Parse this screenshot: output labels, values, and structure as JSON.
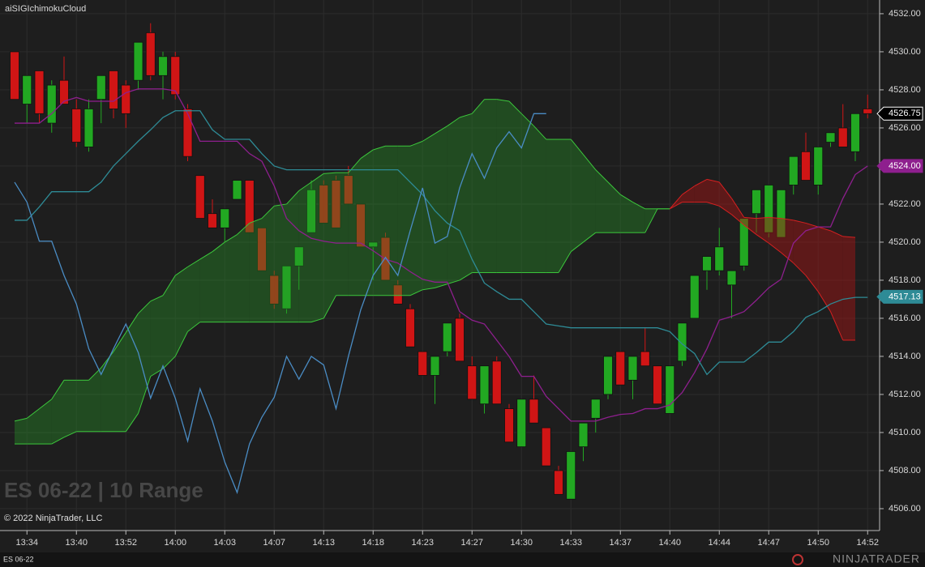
{
  "indicator_label": "aiSIGIchimokuCloud",
  "watermark": "ES 06-22 | 10 Range",
  "copyright": "© 2022 NinjaTrader, LLC",
  "instrument_tab": "ES 06-22",
  "logo": "NINJATRADER",
  "chart_data": {
    "type": "candlestick",
    "x": [
      null,
      "13:34",
      null,
      null,
      null,
      "13:40",
      null,
      null,
      null,
      "13:52",
      null,
      null,
      null,
      "14:00",
      null,
      null,
      null,
      "14:03",
      null,
      null,
      null,
      "14:07",
      null,
      null,
      null,
      "14:13",
      null,
      null,
      null,
      "14:18",
      null,
      null,
      null,
      "14:23",
      null,
      null,
      null,
      "14:27",
      null,
      null,
      null,
      "14:30",
      null,
      null,
      null,
      "14:33",
      null,
      null,
      null,
      "14:37",
      null,
      null,
      null,
      "14:40",
      null,
      null,
      null,
      "14:44",
      null,
      null,
      null,
      "14:47",
      null,
      null,
      null,
      "14:50",
      null,
      null,
      null,
      "14:52"
    ],
    "open": [
      4530,
      4527.25,
      4529,
      4526.25,
      4528.5,
      4527,
      4525,
      4527.5,
      4529,
      4528.25,
      4528.5,
      4531,
      4528.75,
      4529.75,
      4527,
      4523.5,
      4521.5,
      4520.75,
      4522.25,
      4523.25,
      4520.75,
      4518.25,
      4516.5,
      4518.75,
      4520.5,
      4523,
      4523.25,
      4523.5,
      4522,
      4519.75,
      4520.25,
      4517.75,
      4516.5,
      4514.25,
      4513,
      4514.25,
      4516,
      4513.5,
      4511.5,
      4513.75,
      4511.25,
      4509.25,
      4511.75,
      4510.25,
      4508,
      4506.5,
      4509.25,
      4510.75,
      4512,
      4514.25,
      4512.75,
      4514.25,
      4513.5,
      4511,
      4513.75,
      4516,
      4518.5,
      4518.5,
      4517.75,
      4518.75,
      4521.5,
      4520.5,
      4520.25,
      4523,
      4524.75,
      4523,
      4525.25,
      4526,
      4524.75,
      4527
    ],
    "high": [
      4530,
      4528.75,
      4529,
      4528.5,
      4529.75,
      4527.5,
      4527.5,
      4528.75,
      4529,
      4528.5,
      4530.5,
      4531.5,
      4530,
      4530,
      4527.25,
      4523.5,
      4522.25,
      4521.75,
      4523.25,
      4523.25,
      4520.75,
      4518.5,
      4518.75,
      4519.75,
      4523.25,
      4523.25,
      4523.5,
      4524,
      4522,
      4520,
      4520.5,
      4518,
      4516.75,
      4514.25,
      4514,
      4515.75,
      4516.25,
      4514,
      4513.5,
      4514,
      4511.5,
      4511.75,
      4513,
      4510.25,
      4508.25,
      4509,
      4510.5,
      4511.75,
      4514,
      4514.25,
      4514,
      4515.5,
      4513.5,
      4513.5,
      4515.75,
      4518.25,
      4519.25,
      4520.75,
      4518.5,
      4521.25,
      4522.75,
      4523,
      4522.75,
      4524.5,
      4525.75,
      4525,
      4525.75,
      4527.25,
      4526.75,
      4527.75
    ],
    "low": [
      4527.5,
      4526.25,
      4526.25,
      4525.75,
      4527.25,
      4525,
      4524.75,
      4526.25,
      4526.5,
      4526,
      4528,
      4528.5,
      4527.5,
      4527.5,
      4524.25,
      4521.25,
      4520.75,
      4520,
      4522.25,
      4520.5,
      4518.5,
      4516.5,
      4516.25,
      4517.5,
      4520.5,
      4521,
      4520.75,
      4522,
      4519.75,
      4518,
      4518,
      4516.75,
      4514.5,
      4513,
      4511.5,
      4514,
      4513.75,
      4511.75,
      4511,
      4511.5,
      4509.5,
      4509.25,
      4510.5,
      4508.25,
      4506.75,
      4506.5,
      4508.5,
      4510,
      4511.75,
      4512.5,
      4511.75,
      4513.5,
      4511.5,
      4511,
      4513.5,
      4516,
      4517.5,
      4518.25,
      4516,
      4518.5,
      4520.5,
      4520.25,
      4520.25,
      4522.5,
      4523.25,
      4522.5,
      4525,
      4525,
      4524.25,
      4526.5
    ],
    "close": [
      4527.5,
      4528.75,
      4526.75,
      4528.25,
      4527.25,
      4525.25,
      4527,
      4528.75,
      4527,
      4526.75,
      4530.5,
      4528.75,
      4529.75,
      4527.75,
      4524.5,
      4521.25,
      4520.75,
      4521.75,
      4523.25,
      4520.5,
      4518.5,
      4516.75,
      4518.75,
      4519.75,
      4522.75,
      4521,
      4520.75,
      4522,
      4519.75,
      4520,
      4518,
      4516.75,
      4514.5,
      4513,
      4514,
      4515.75,
      4513.75,
      4511.75,
      4513.5,
      4511.5,
      4509.5,
      4511.75,
      4510.5,
      4508.25,
      4506.75,
      4509,
      4510.5,
      4511.75,
      4514,
      4512.5,
      4514,
      4513.5,
      4511.5,
      4513.5,
      4515.75,
      4518.25,
      4519.25,
      4519.75,
      4518.5,
      4521.25,
      4522.75,
      4523,
      4522.75,
      4524.5,
      4523.25,
      4525,
      4525.75,
      4525,
      4526.75,
      4526.75
    ],
    "up_color": "#22a822",
    "down_color": "#d01515",
    "cloud": {
      "span_a": [
        4510.6,
        4510.75,
        4511.25,
        4511.75,
        4512.75,
        4512.75,
        4512.75,
        4513.4,
        4514.25,
        4515.25,
        4516.25,
        4516.9,
        4517.2,
        4518.25,
        4518.7,
        4519.1,
        4519.5,
        4520,
        4520.4,
        4521,
        4521.25,
        4521.9,
        4522,
        4522.7,
        4523.15,
        4523.6,
        4523.65,
        4523.65,
        4524.4,
        4524.85,
        4525.05,
        4525.05,
        4525.05,
        4525.3,
        4525.7,
        4526.1,
        4526.55,
        4526.75,
        4527.5,
        4527.5,
        4527.4,
        4526.75,
        4526.1,
        4525.4,
        4525.4,
        4525.4,
        4524.6,
        4523.8,
        4523.15,
        4522.5,
        4522.1,
        4521.75,
        4521.75,
        4521.75,
        4522.1,
        4522.1,
        4522.1,
        4521.9,
        4521.45,
        4520.9,
        4520.4,
        4519.95,
        4519.45,
        4518.9,
        4518.25,
        4517.4,
        4516.35,
        4514.85,
        4514.85,
        null
      ],
      "span_b": [
        4509.4,
        4509.4,
        4509.4,
        4509.4,
        4509.75,
        4510.05,
        4510.05,
        4510.05,
        4510.05,
        4510.05,
        4511,
        4512.95,
        4513.35,
        4514,
        4515.3,
        4515.8,
        4515.8,
        4515.8,
        4515.8,
        4515.8,
        4515.8,
        4515.8,
        4515.8,
        4515.8,
        4515.8,
        4516,
        4517.2,
        4517.2,
        4517.2,
        4517.2,
        4517.2,
        4517.2,
        4517.2,
        4517.5,
        4517.6,
        4517.8,
        4518,
        4518.4,
        4518.4,
        4518.4,
        4518.4,
        4518.4,
        4518.4,
        4518.4,
        4518.4,
        4519.5,
        4520,
        4520.5,
        4520.5,
        4520.5,
        4520.5,
        4520.5,
        4521.75,
        4521.75,
        4522.5,
        4522.95,
        4523.3,
        4523.15,
        4522.3,
        4521.3,
        4521.25,
        4521.3,
        4521.25,
        4521.15,
        4521,
        4520.8,
        4520.6,
        4520.3,
        4520.25,
        null
      ],
      "bull_color": "#3cc83c",
      "bull_fill": "rgba(40,150,40,0.38)",
      "bear_color": "#d82020",
      "bear_fill": "rgba(170,20,20,0.45)"
    },
    "lines": [
      {
        "color": "#8e1f8e",
        "values": [
          4526.25,
          4526.25,
          4526.25,
          4526.75,
          4527.4,
          4527.6,
          4527.4,
          4527.4,
          4527.4,
          4527.85,
          4528.05,
          4528.05,
          4528.05,
          4527.95,
          4526.75,
          4525.3,
          4525.3,
          4525.3,
          4525.3,
          4524.65,
          4524.25,
          4522.95,
          4521.25,
          4520.6,
          4520.2,
          4520.05,
          4519.95,
          4519.95,
          4519.95,
          4519.55,
          4519.1,
          4518.9,
          4518.45,
          4518.05,
          4517.9,
          4517.9,
          4516.35,
          4515.9,
          4515.7,
          4514.85,
          4514,
          4512.95,
          4512.95,
          4511.9,
          4511.25,
          4510.6,
          4510.6,
          4510.6,
          4510.8,
          4510.95,
          4511,
          4511.25,
          4511.25,
          4511.45,
          4512.1,
          4513.15,
          4514.4,
          4515.9,
          4516.1,
          4516.35,
          4516.95,
          4517.6,
          4518.05,
          4519.95,
          4520.6,
          4520.8,
          4520.8,
          4522.3,
          4523.55,
          4524
        ]
      },
      {
        "color": "#2e8b96",
        "values": [
          4521.15,
          4521.15,
          4521.85,
          4522.65,
          4522.65,
          4522.65,
          4522.65,
          4523.15,
          4524,
          4524.65,
          4525.3,
          4525.9,
          4526.55,
          4526.9,
          4526.9,
          4526.9,
          4525.9,
          4525.4,
          4525.4,
          4525.4,
          4524.65,
          4524,
          4523.8,
          4523.8,
          4523.8,
          4523.8,
          4523.8,
          4523.8,
          4523.8,
          4523.8,
          4523.8,
          4523.8,
          4523.15,
          4522.5,
          4521.65,
          4521,
          4520.6,
          4519.1,
          4517.85,
          4517.4,
          4517,
          4517,
          4516.35,
          4515.7,
          4515.6,
          4515.5,
          4515.5,
          4515.5,
          4515.5,
          4515.5,
          4515.5,
          4515.5,
          4515.5,
          4515.3,
          4514.65,
          4514.15,
          4513.05,
          4513.7,
          4513.7,
          4513.7,
          4514.2,
          4514.75,
          4514.75,
          4515.3,
          4516.05,
          4516.35,
          4516.75,
          4517,
          4517.1,
          4517.1
        ]
      },
      {
        "color": "#4a8cc4",
        "values": [
          4523.15,
          4522.1,
          4520.05,
          4520.05,
          4518.25,
          4516.75,
          4514.4,
          4513.05,
          4514.4,
          4515.7,
          4514.2,
          4511.8,
          4513.5,
          4511.8,
          4509.55,
          4512.3,
          4510.6,
          4508.45,
          4506.85,
          4509.4,
          4510.8,
          4511.85,
          4514,
          4512.8,
          4514,
          4513.55,
          4511.25,
          4514,
          4516.45,
          4518.25,
          4519.2,
          4518.25,
          4520.6,
          4522.85,
          4519.95,
          4520.3,
          4522.85,
          4524.65,
          4523.35,
          4524.95,
          4525.8,
          4524.95,
          4526.75,
          4526.75,
          null,
          null,
          null,
          null,
          null,
          null,
          null,
          null,
          null,
          null,
          null,
          null,
          null,
          null,
          null,
          null,
          null,
          null,
          null,
          null,
          null,
          null,
          null,
          null,
          null,
          null
        ]
      }
    ],
    "price_markers": [
      {
        "value": 4526.75,
        "label": "4526.75",
        "color": "#000000",
        "border": "#ffffff"
      },
      {
        "value": 4524,
        "label": "4524.00",
        "color": "#8e1f8e",
        "border": "#8e1f8e"
      },
      {
        "value": 4517.13,
        "label": "4517.13",
        "color": "#2e8b96",
        "border": "#2e8b96"
      }
    ],
    "ylim": [
      4504.85,
      4532.72
    ],
    "yticks": [
      {
        "value": 4506,
        "label": "4506.00"
      },
      {
        "value": 4508,
        "label": "4508.00"
      },
      {
        "value": 4510,
        "label": "4510.00"
      },
      {
        "value": 4512,
        "label": "4512.00"
      },
      {
        "value": 4514,
        "label": "4514.00"
      },
      {
        "value": 4516,
        "label": "4516.00"
      },
      {
        "value": 4518,
        "label": "4518.00"
      },
      {
        "value": 4520,
        "label": "4520.00"
      },
      {
        "value": 4522,
        "label": "4522.00"
      },
      {
        "value": 4524,
        "label": "4524.00"
      },
      {
        "value": 4526,
        "label": "4526.00"
      },
      {
        "value": 4528,
        "label": "4528.00"
      },
      {
        "value": 4530,
        "label": "4530.00"
      },
      {
        "value": 4532,
        "label": "4532.00"
      }
    ],
    "grid": true
  }
}
